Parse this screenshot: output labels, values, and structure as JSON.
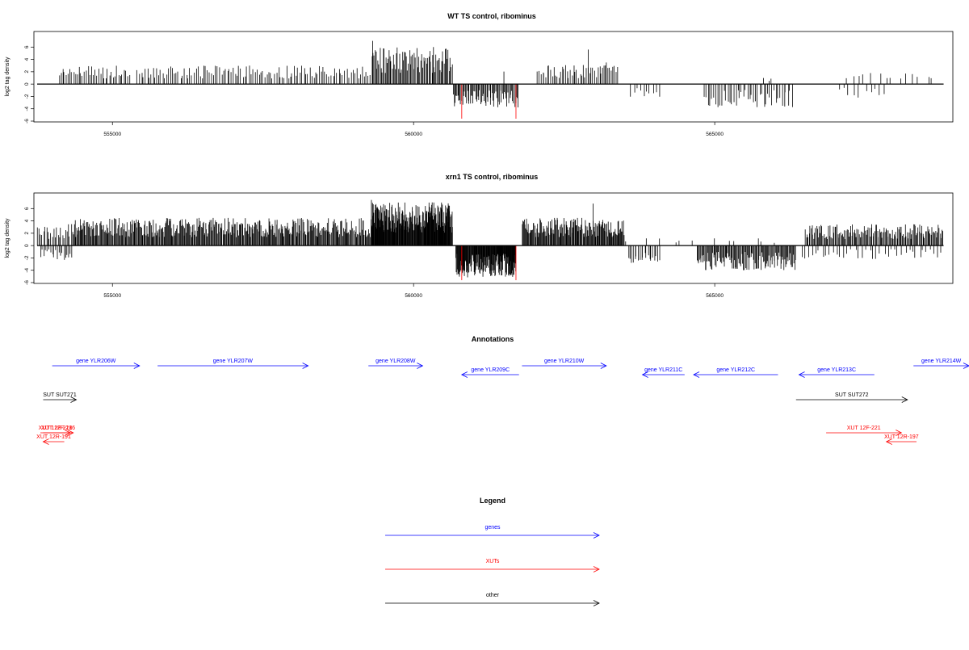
{
  "colors": {
    "positive": "#000000",
    "negative": "#000000",
    "highlight": "#ff0000",
    "genes": "#0000ff",
    "xuts": "#ff0000",
    "other": "#000000"
  },
  "chart_data": [
    {
      "type": "bar",
      "title": "WT TS control, ribominus",
      "ylabel": "log2 tag density",
      "xlim": [
        553750,
        568900
      ],
      "ylim": [
        -6,
        8
      ],
      "yticks": [
        -6,
        -4,
        -2,
        0,
        2,
        4,
        6
      ],
      "ytick_labels": [
        "-6",
        "-4",
        "-2",
        "0",
        "2",
        "4",
        "6"
      ],
      "xticks": [
        555000,
        560000,
        565000
      ],
      "xtick_labels": [
        "555000",
        "560000",
        "565000"
      ],
      "baseline_range": [
        553750,
        568800
      ],
      "grid": false,
      "positive_segments": [
        {
          "from": 554100,
          "to": 555300,
          "count": 40,
          "max": 3.0
        },
        {
          "from": 555400,
          "to": 559300,
          "count": 120,
          "max": 3.0
        },
        {
          "from": 559300,
          "to": 560650,
          "count": 80,
          "max": 6.0
        },
        {
          "from": 561500,
          "to": 561500,
          "count": 1,
          "max": 2.2
        },
        {
          "from": 562050,
          "to": 563400,
          "count": 50,
          "max": 3.2
        },
        {
          "from": 565800,
          "to": 566000,
          "count": 3,
          "max": 1.0
        },
        {
          "from": 567100,
          "to": 568700,
          "count": 14,
          "max": 1.8
        }
      ],
      "peaks": [
        {
          "x": 559320,
          "y": 7.0
        },
        {
          "x": 560330,
          "y": 6.0
        },
        {
          "x": 560480,
          "y": 5.3
        },
        {
          "x": 562900,
          "y": 5.6
        },
        {
          "x": 563200,
          "y": 3.5
        }
      ],
      "negative_segments": [
        {
          "from": 560650,
          "to": 561750,
          "count": 70,
          "max": 3.8
        },
        {
          "from": 563600,
          "to": 564100,
          "count": 10,
          "max": 2.6
        },
        {
          "from": 564800,
          "to": 566300,
          "count": 45,
          "max": 3.8
        },
        {
          "from": 567000,
          "to": 567900,
          "count": 10,
          "max": 2.2
        }
      ],
      "highlight_bars": [
        {
          "x": 560800,
          "y": -5.6
        },
        {
          "x": 561700,
          "y": -5.6
        }
      ]
    },
    {
      "type": "bar",
      "title": "xrn1 TS control, ribominus",
      "ylabel": "log2 tag density",
      "xlim": [
        553750,
        568900
      ],
      "ylim": [
        -6,
        8
      ],
      "yticks": [
        -6,
        -4,
        -2,
        0,
        2,
        4,
        6
      ],
      "ytick_labels": [
        "-6",
        "-4",
        "-2",
        "0",
        "2",
        "4",
        "6"
      ],
      "xticks": [
        555000,
        560000,
        565000
      ],
      "xtick_labels": [
        "555000",
        "560000",
        "565000"
      ],
      "baseline_range": [
        553750,
        568800
      ],
      "grid": false,
      "positive_segments": [
        {
          "from": 553750,
          "to": 554350,
          "count": 25,
          "max": 3.5
        },
        {
          "from": 554350,
          "to": 557200,
          "count": 230,
          "max": 4.5
        },
        {
          "from": 557200,
          "to": 559300,
          "count": 170,
          "max": 4.5
        },
        {
          "from": 559300,
          "to": 560650,
          "count": 200,
          "max": 7.0
        },
        {
          "from": 561800,
          "to": 563500,
          "count": 150,
          "max": 4.5
        },
        {
          "from": 563500,
          "to": 566200,
          "count": 12,
          "max": 1.2
        },
        {
          "from": 566500,
          "to": 568800,
          "count": 150,
          "max": 3.5
        }
      ],
      "peaks": [
        {
          "x": 559300,
          "y": 7.4
        },
        {
          "x": 560300,
          "y": 6.6
        },
        {
          "x": 562980,
          "y": 6.8
        }
      ],
      "negative_segments": [
        {
          "from": 553800,
          "to": 554350,
          "count": 20,
          "max": 2.4
        },
        {
          "from": 560700,
          "to": 561700,
          "count": 150,
          "max": 5.2
        },
        {
          "from": 563550,
          "to": 564100,
          "count": 20,
          "max": 3.0
        },
        {
          "from": 564700,
          "to": 566350,
          "count": 120,
          "max": 4.0
        },
        {
          "from": 566400,
          "to": 568800,
          "count": 40,
          "max": 2.2
        }
      ],
      "highlight_bars": [
        {
          "x": 560800,
          "y": -5.6
        },
        {
          "x": 561700,
          "y": -5.6
        }
      ]
    }
  ],
  "annotations": {
    "title": "Annotations",
    "features": [
      {
        "label": "gene YLR206W",
        "kind": "genes",
        "strand": "+",
        "start": 554000,
        "end": 555450,
        "row": 0
      },
      {
        "label": "gene YLR207W",
        "kind": "genes",
        "strand": "+",
        "start": 555750,
        "end": 558250,
        "row": 0
      },
      {
        "label": "gene YLR208W",
        "kind": "genes",
        "strand": "+",
        "start": 559250,
        "end": 560150,
        "row": 0
      },
      {
        "label": "gene YLR209C",
        "kind": "genes",
        "strand": "-",
        "start": 560800,
        "end": 561750,
        "row": 1
      },
      {
        "label": "gene YLR210W",
        "kind": "genes",
        "strand": "+",
        "start": 561800,
        "end": 563200,
        "row": 0
      },
      {
        "label": "gene YLR211C",
        "kind": "genes",
        "strand": "-",
        "start": 563800,
        "end": 564500,
        "row": 1
      },
      {
        "label": "gene YLR212C",
        "kind": "genes",
        "strand": "-",
        "start": 564650,
        "end": 566050,
        "row": 1
      },
      {
        "label": "gene YLR213C",
        "kind": "genes",
        "strand": "-",
        "start": 566400,
        "end": 567650,
        "row": 1
      },
      {
        "label": "gene YLR214W",
        "kind": "genes",
        "strand": "+",
        "start": 568300,
        "end": 570000,
        "row": 0
      },
      {
        "label": "SUT SUT271",
        "kind": "other",
        "strand": "+",
        "start": 553850,
        "end": 554400,
        "row": 2
      },
      {
        "label": "SUT SUT272",
        "kind": "other",
        "strand": "+",
        "start": 566350,
        "end": 568200,
        "row": 2
      },
      {
        "label": "XUT 12F-218",
        "kind": "xuts",
        "strand": "+",
        "start": 553700,
        "end": 554300,
        "row": 3
      },
      {
        "label": "XUT 12F-216",
        "kind": "xuts",
        "strand": "+",
        "start": 553850,
        "end": 554350,
        "row": 3
      },
      {
        "label": "XUT 12R-191",
        "kind": "xuts",
        "strand": "-",
        "start": 553850,
        "end": 554200,
        "row": 4
      },
      {
        "label": "XUT 12F-221",
        "kind": "xuts",
        "strand": "+",
        "start": 566850,
        "end": 568100,
        "row": 3
      },
      {
        "label": "XUT 12R-197",
        "kind": "xuts",
        "strand": "-",
        "start": 567850,
        "end": 568350,
        "row": 4
      }
    ]
  },
  "legend": {
    "title": "Legend",
    "entries": [
      {
        "label": "genes",
        "kind": "genes"
      },
      {
        "label": "XUTs",
        "kind": "xuts"
      },
      {
        "label": "other",
        "kind": "other"
      }
    ]
  }
}
